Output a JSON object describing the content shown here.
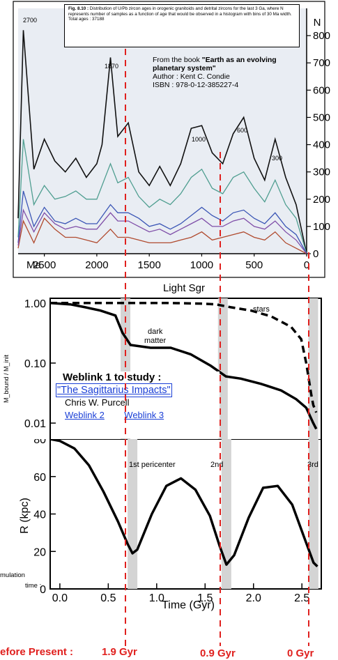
{
  "figure_top": {
    "caption_lead": "Fig. 8.10 :",
    "caption_text": "Distribution of U/Pb zircon ages in orogenic granitoids and detrital zircons for the last 3 Ga, where N represents number of samples as a function of age that would be observed in a histogram with bins of 30 Ma width. Total ages : 37188",
    "book_line1_prefix": "From the book ",
    "book_title": "\"Earth as an evolving planetary system\"",
    "book_author": "Author : Kent C. Condie",
    "book_isbn": "ISBN : 978-0-12-385227-4",
    "peak_labels": [
      "2700",
      "1870",
      "1000",
      "600",
      "300"
    ],
    "x_unit": "Ma",
    "x_ticks": [
      "2500",
      "2000",
      "1500",
      "1000",
      "500",
      "0"
    ],
    "y_label": "N",
    "y_ticks": [
      "800",
      "700",
      "600",
      "500",
      "400",
      "300",
      "200",
      "100",
      "0"
    ]
  },
  "figure_middle": {
    "title": "Light Sgr",
    "y_ticks": [
      "1.00",
      "0.10",
      "0.01"
    ],
    "y_label": "M_bound / M_init",
    "curve_label_stars": "stars",
    "curve_label_dm_1": "dark",
    "curve_label_dm_2": "matter"
  },
  "weblinks": {
    "title": "Weblink 1 to study :",
    "link_main": "\"The Sagittarius Impacts\"",
    "author": "Chris W. Purcell",
    "link_2": "Weblink 2",
    "link_3": "Weblink 3"
  },
  "figure_bottom": {
    "y_label": "R (kpc)",
    "y_ticks": [
      "80",
      "60",
      "40",
      "20",
      "0"
    ],
    "x_label": "Time (Gyr)",
    "x_ticks": [
      "0.0",
      "0.5",
      "1.0",
      "1.5",
      "2.0",
      "2.5"
    ],
    "pericenter_labels": [
      "1st pericenter",
      "2nd",
      "3rd"
    ],
    "side_note_1": "mulation",
    "side_note_2": "time :"
  },
  "footer": {
    "before_present": "efore Present :",
    "gyr_labels": [
      "1.9 Gyr",
      "0.9 Gyr",
      "0 Gyr"
    ]
  },
  "colors": {
    "guide_red": "#e0201e",
    "highlight_grey": "#d4d4d4",
    "link_blue": "#1a3fd6"
  },
  "chart_data": [
    {
      "type": "line",
      "title": "",
      "xlabel": "Ma",
      "ylabel": "N",
      "x_reversed": true,
      "xlim": [
        2750,
        0
      ],
      "ylim": [
        0,
        900
      ],
      "series": [
        {
          "name": "",
          "color": "#111111",
          "x": [
            2750,
            2700,
            2600,
            2500,
            2400,
            2300,
            2200,
            2100,
            2000,
            1950,
            1870,
            1800,
            1700,
            1600,
            1500,
            1400,
            1300,
            1200,
            1100,
            1000,
            900,
            800,
            700,
            600,
            500,
            400,
            300,
            200,
            100,
            0
          ],
          "y": [
            130,
            820,
            310,
            420,
            340,
            300,
            350,
            280,
            330,
            400,
            720,
            430,
            480,
            300,
            250,
            320,
            250,
            330,
            460,
            470,
            370,
            330,
            440,
            500,
            350,
            270,
            420,
            280,
            180,
            0
          ]
        },
        {
          "name": "",
          "color": "#4f9e90",
          "x": [
            2750,
            2700,
            2600,
            2500,
            2400,
            2300,
            2200,
            2100,
            2000,
            1870,
            1800,
            1700,
            1600,
            1500,
            1400,
            1300,
            1200,
            1100,
            1000,
            900,
            800,
            700,
            600,
            500,
            400,
            300,
            200,
            100,
            0
          ],
          "y": [
            60,
            420,
            180,
            250,
            200,
            210,
            230,
            200,
            200,
            330,
            260,
            280,
            210,
            170,
            200,
            180,
            220,
            280,
            310,
            240,
            220,
            280,
            300,
            240,
            190,
            270,
            180,
            130,
            0
          ]
        },
        {
          "name": "",
          "color": "#3a55b5",
          "x": [
            2750,
            2700,
            2600,
            2500,
            2400,
            2300,
            2200,
            2100,
            2000,
            1870,
            1800,
            1700,
            1600,
            1500,
            1400,
            1300,
            1200,
            1100,
            1000,
            900,
            800,
            700,
            600,
            500,
            400,
            300,
            200,
            100,
            0
          ],
          "y": [
            40,
            230,
            100,
            170,
            120,
            110,
            130,
            110,
            110,
            180,
            150,
            150,
            130,
            100,
            110,
            90,
            110,
            140,
            170,
            140,
            120,
            150,
            160,
            130,
            110,
            150,
            100,
            70,
            0
          ]
        },
        {
          "name": "",
          "color": "#b04a2e",
          "x": [
            2750,
            2700,
            2600,
            2500,
            2400,
            2300,
            2200,
            2100,
            2000,
            1870,
            1800,
            1700,
            1600,
            1500,
            1400,
            1300,
            1200,
            1100,
            1000,
            900,
            800,
            700,
            600,
            500,
            400,
            300,
            200,
            100,
            0
          ],
          "y": [
            20,
            120,
            40,
            130,
            90,
            60,
            60,
            50,
            40,
            90,
            60,
            60,
            50,
            40,
            40,
            40,
            50,
            60,
            80,
            50,
            60,
            70,
            80,
            60,
            50,
            80,
            40,
            20,
            0
          ]
        },
        {
          "name": "",
          "color": "#7f4ea8",
          "x": [
            2750,
            2700,
            2600,
            2500,
            2400,
            2300,
            2200,
            2100,
            2000,
            1870,
            1800,
            1700,
            1600,
            1500,
            1400,
            1300,
            1200,
            1100,
            1000,
            900,
            800,
            700,
            600,
            500,
            400,
            300,
            200,
            100,
            0
          ],
          "y": [
            30,
            160,
            80,
            150,
            110,
            90,
            100,
            90,
            90,
            150,
            120,
            120,
            100,
            80,
            90,
            70,
            90,
            110,
            130,
            100,
            100,
            120,
            130,
            100,
            90,
            120,
            80,
            50,
            0
          ]
        }
      ]
    },
    {
      "type": "line",
      "title": "Light Sgr",
      "xlabel": "Time (Gyr)",
      "ylabel": "M_bound / M_init",
      "y_scale": "log",
      "xlim": [
        0,
        2.7
      ],
      "ylim": [
        0.005,
        1.2
      ],
      "series": [
        {
          "name": "stars",
          "style": "dashed",
          "x": [
            0,
            0.3,
            0.6,
            0.9,
            1.2,
            1.5,
            1.65,
            1.8,
            2.0,
            2.2,
            2.4,
            2.5,
            2.55,
            2.6,
            2.62,
            2.65
          ],
          "y": [
            1.0,
            1.0,
            1.0,
            1.0,
            1.0,
            0.98,
            0.95,
            0.85,
            0.75,
            0.6,
            0.4,
            0.25,
            0.1,
            0.03,
            0.02,
            0.015
          ]
        },
        {
          "name": "dark matter",
          "style": "solid",
          "x": [
            0,
            0.2,
            0.35,
            0.5,
            0.65,
            0.72,
            0.8,
            1.0,
            1.2,
            1.4,
            1.6,
            1.75,
            1.9,
            2.1,
            2.3,
            2.45,
            2.55,
            2.62,
            2.65
          ],
          "y": [
            1.0,
            0.95,
            0.85,
            0.75,
            0.62,
            0.32,
            0.2,
            0.18,
            0.18,
            0.14,
            0.09,
            0.06,
            0.055,
            0.045,
            0.035,
            0.025,
            0.018,
            0.01,
            0.008
          ]
        }
      ]
    },
    {
      "type": "line",
      "title": "",
      "xlabel": "Time (Gyr)",
      "ylabel": "R (kpc)",
      "xlim": [
        -0.1,
        2.7
      ],
      "ylim": [
        0,
        80
      ],
      "series": [
        {
          "name": "",
          "color": "#000000",
          "x": [
            -0.1,
            0.0,
            0.15,
            0.3,
            0.45,
            0.6,
            0.7,
            0.75,
            0.8,
            0.95,
            1.1,
            1.25,
            1.4,
            1.55,
            1.65,
            1.72,
            1.8,
            1.95,
            2.1,
            2.25,
            2.4,
            2.52,
            2.62,
            2.66
          ],
          "y": [
            80,
            79,
            75,
            66,
            52,
            36,
            24,
            19,
            21,
            40,
            55,
            59,
            53,
            39,
            23,
            13,
            18,
            38,
            54,
            55,
            45,
            28,
            14,
            12
          ]
        }
      ]
    }
  ]
}
